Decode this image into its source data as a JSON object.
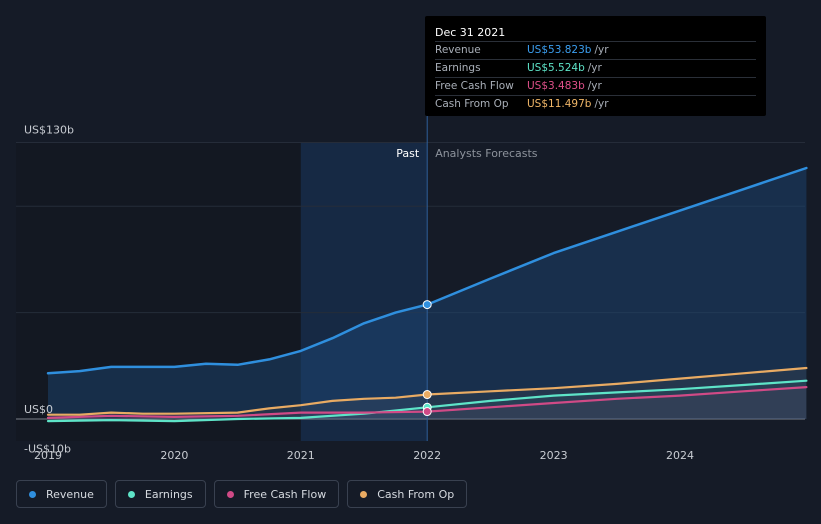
{
  "tooltip": {
    "date": "Dec 31 2021",
    "rows": [
      {
        "label": "Revenue",
        "value": "US$53.823b",
        "unit": "/yr",
        "color": "#3b9ff1"
      },
      {
        "label": "Earnings",
        "value": "US$5.524b",
        "unit": "/yr",
        "color": "#5ee4c8"
      },
      {
        "label": "Free Cash Flow",
        "value": "US$3.483b",
        "unit": "/yr",
        "color": "#e0508a"
      },
      {
        "label": "Cash From Op",
        "value": "US$11.497b",
        "unit": "/yr",
        "color": "#f1b768"
      }
    ]
  },
  "legend": [
    {
      "label": "Revenue",
      "color": "#2f8fde"
    },
    {
      "label": "Earnings",
      "color": "#5ee4c8"
    },
    {
      "label": "Free Cash Flow",
      "color": "#d04a86"
    },
    {
      "label": "Cash From Op",
      "color": "#e9ab63"
    }
  ],
  "chart_data": {
    "type": "line",
    "title": "",
    "xlabel": "",
    "ylabel": "",
    "y_tick_labels": [
      "US$130b",
      "US$0",
      "-US$10b"
    ],
    "x_tick_labels": [
      "2019",
      "2020",
      "2021",
      "2022",
      "2023",
      "2024"
    ],
    "ylim": [
      -10,
      130
    ],
    "xlim": [
      2019.0,
      2025.0
    ],
    "past_label": "Past",
    "forecast_label": "Analysts Forecasts",
    "divider_x": 2022.0,
    "highlight_start": 2021.0,
    "series": [
      {
        "name": "Revenue",
        "color": "#2f8fde",
        "x": [
          2019.0,
          2019.25,
          2019.5,
          2019.75,
          2020.0,
          2020.25,
          2020.5,
          2020.75,
          2021.0,
          2021.25,
          2021.5,
          2021.75,
          2022.0,
          2022.5,
          2023.0,
          2023.5,
          2024.0,
          2024.5,
          2025.0
        ],
        "y": [
          21.5,
          22.5,
          24.5,
          24.5,
          24.5,
          26.0,
          25.5,
          28.0,
          32.0,
          38.0,
          45.0,
          50.0,
          53.8,
          66.0,
          78.0,
          88.0,
          98.0,
          108.0,
          118.0
        ]
      },
      {
        "name": "Earnings",
        "color": "#5ee4c8",
        "x": [
          2019.0,
          2019.5,
          2020.0,
          2020.5,
          2021.0,
          2021.5,
          2022.0,
          2022.5,
          2023.0,
          2023.5,
          2024.0,
          2024.5,
          2025.0
        ],
        "y": [
          -1.0,
          -0.5,
          -1.0,
          0.0,
          0.5,
          2.5,
          5.5,
          8.5,
          11.0,
          12.5,
          14.0,
          16.0,
          18.0
        ]
      },
      {
        "name": "Free Cash Flow",
        "color": "#d04a86",
        "x": [
          2019.0,
          2019.5,
          2020.0,
          2020.5,
          2021.0,
          2021.5,
          2022.0,
          2022.5,
          2023.0,
          2023.5,
          2024.0,
          2024.5,
          2025.0
        ],
        "y": [
          0.5,
          1.5,
          1.0,
          1.5,
          3.0,
          3.0,
          3.5,
          5.5,
          7.5,
          9.5,
          11.0,
          13.0,
          15.0
        ]
      },
      {
        "name": "Cash From Op",
        "color": "#e9ab63",
        "x": [
          2019.0,
          2019.25,
          2019.5,
          2019.75,
          2020.0,
          2020.5,
          2020.75,
          2021.0,
          2021.25,
          2021.5,
          2021.75,
          2022.0,
          2022.5,
          2023.0,
          2023.5,
          2024.0,
          2024.5,
          2025.0
        ],
        "y": [
          2.0,
          2.0,
          3.0,
          2.5,
          2.5,
          3.0,
          5.0,
          6.5,
          8.5,
          9.5,
          10.0,
          11.5,
          13.0,
          14.5,
          16.5,
          19.0,
          21.5,
          24.0
        ]
      }
    ],
    "highlight_points_x": 2022.0
  }
}
